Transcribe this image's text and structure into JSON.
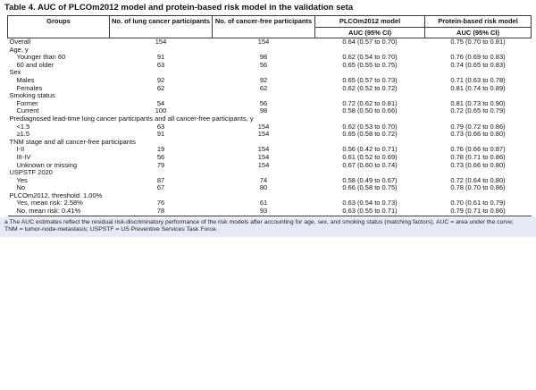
{
  "title": {
    "text": "Table 4. AUC of PLCOm2012 model and protein-based risk model in the validation set",
    "footnote_marker": "a"
  },
  "table": {
    "columns": [
      "Groups",
      "No. of lung cancer participants",
      "No. of cancer-free participants",
      "PLCOm2012 model",
      "Protein-based risk model"
    ],
    "subheader_auc": "AUC (95% CI)",
    "rows": [
      {
        "label": "Overall",
        "indent": false,
        "section": false,
        "lung": "154",
        "free": "154",
        "plco": "0.64 (0.57 to 0.70)",
        "protein": "0.75 (0.70 to 0.81)"
      },
      {
        "label": "Age, y",
        "indent": false,
        "section": true,
        "lung": "",
        "free": "",
        "plco": "",
        "protein": ""
      },
      {
        "label": "Younger than 60",
        "indent": true,
        "section": false,
        "lung": "91",
        "free": "98",
        "plco": "0.62 (0.54 to 0.70)",
        "protein": "0.76 (0.69 to 0.83)"
      },
      {
        "label": "60 and older",
        "indent": true,
        "section": false,
        "lung": "63",
        "free": "56",
        "plco": "0.65 (0.55 to 0.75)",
        "protein": "0.74 (0.65 to 0.83)"
      },
      {
        "label": "Sex",
        "indent": false,
        "section": true,
        "lung": "",
        "free": "",
        "plco": "",
        "protein": ""
      },
      {
        "label": "Males",
        "indent": true,
        "section": false,
        "lung": "92",
        "free": "92",
        "plco": "0.65 (0.57 to 0.73)",
        "protein": "0.71 (0.63 to 0.78)"
      },
      {
        "label": "Females",
        "indent": true,
        "section": false,
        "lung": "62",
        "free": "62",
        "plco": "0.62 (0.52 to 0.72)",
        "protein": "0.81 (0.74 to 0.89)"
      },
      {
        "label": "Smoking status",
        "indent": false,
        "section": true,
        "lung": "",
        "free": "",
        "plco": "",
        "protein": ""
      },
      {
        "label": "Former",
        "indent": true,
        "section": false,
        "lung": "54",
        "free": "56",
        "plco": "0.72 (0.62 to 0.81)",
        "protein": "0.81 (0.73 to 0.90)"
      },
      {
        "label": "Current",
        "indent": true,
        "section": false,
        "lung": "100",
        "free": "98",
        "plco": "0.58 (0.50 to 0.66)",
        "protein": "0.72 (0.65 to 0.79)"
      },
      {
        "label": "Prediagnosed lead-time lung cancer participants and all cancer-free participants, y",
        "indent": false,
        "section": true,
        "lung": "",
        "free": "",
        "plco": "",
        "protein": ""
      },
      {
        "label": "<1.5",
        "indent": true,
        "section": false,
        "lung": "63",
        "free": "154",
        "plco": "0.62 (0.53 to 0.70)",
        "protein": "0.79 (0.72 to 0.86)"
      },
      {
        "label": "≥1.5",
        "indent": true,
        "section": false,
        "lung": "91",
        "free": "154",
        "plco": "0.65 (0.58 to 0.72)",
        "protein": "0.73 (0.66 to 0.80)"
      },
      {
        "label": "TNM stage and all cancer-free participants",
        "indent": false,
        "section": true,
        "lung": "",
        "free": "",
        "plco": "",
        "protein": ""
      },
      {
        "label": "I-II",
        "indent": true,
        "section": false,
        "lung": "19",
        "free": "154",
        "plco": "0.56 (0.42 to 0.71)",
        "protein": "0.76 (0.66 to 0.87)"
      },
      {
        "label": "III-IV",
        "indent": true,
        "section": false,
        "lung": "56",
        "free": "154",
        "plco": "0.61 (0.52 to 0.69)",
        "protein": "0.78 (0.71 to 0.86)"
      },
      {
        "label": "Unknown or missing",
        "indent": true,
        "section": false,
        "lung": "79",
        "free": "154",
        "plco": "0.67 (0.60 to 0.74)",
        "protein": "0.73 (0.66 to 0.80)"
      },
      {
        "label": "USPSTF 2020",
        "indent": false,
        "section": true,
        "lung": "",
        "free": "",
        "plco": "",
        "protein": ""
      },
      {
        "label": "Yes",
        "indent": true,
        "section": false,
        "lung": "87",
        "free": "74",
        "plco": "0.58 (0.49 to 0.67)",
        "protein": "0.72 (0.64 to 0.80)"
      },
      {
        "label": "No",
        "indent": true,
        "section": false,
        "lung": "67",
        "free": "80",
        "plco": "0.66 (0.58 to 0.75)",
        "protein": "0.78 (0.70 to 0.86)"
      },
      {
        "label": "PLCOm2012, threshold: 1.00%",
        "indent": false,
        "section": true,
        "lung": "",
        "free": "",
        "plco": "",
        "protein": ""
      },
      {
        "label": "Yes, mean risk: 2.58%",
        "indent": true,
        "section": false,
        "lung": "76",
        "free": "61",
        "plco": "0.63 (0.54 to 0.73)",
        "protein": "0.70 (0.61 to 0.79)"
      },
      {
        "label": "No, mean risk: 0.41%",
        "indent": true,
        "section": false,
        "lung": "78",
        "free": "93",
        "plco": "0.63 (0.55 to 0.71)",
        "protein": "0.79 (0.71 to 0.86)"
      }
    ]
  },
  "footnote": {
    "marker": "a",
    "text": "The AUC estimates reflect the residual risk-discriminatory performance of the risk models after accounting for age, sex, and smoking status (matching factors). AUC = area under the curve; TNM = tumor-node-metastasis; USPSTF = US Preventive Services Task Force."
  },
  "colors": {
    "footnote_background": "#e6eaf6",
    "border": "#3c3c3c",
    "text": "#111111"
  }
}
